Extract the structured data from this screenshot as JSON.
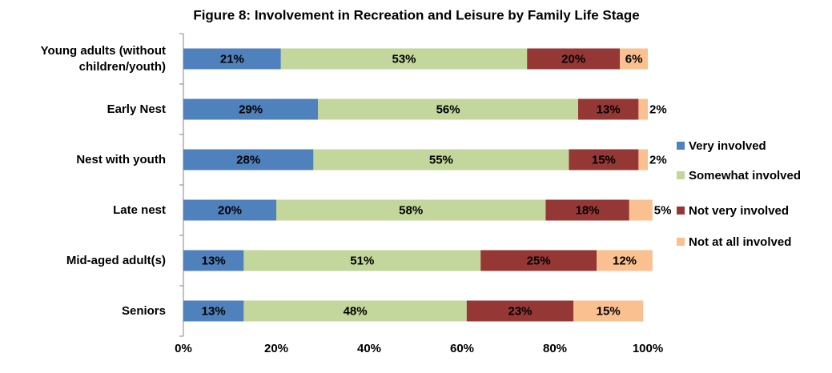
{
  "chart_data": {
    "type": "stacked_bar_horizontal",
    "title": "Figure 8: Involvement in Recreation and Leisure by Family Life Stage",
    "categories": [
      "Young adults (without children/youth)",
      "Early Nest",
      "Nest with youth",
      "Late nest",
      "Mid-aged adult(s)",
      "Seniors"
    ],
    "series": [
      {
        "name": "Very involved",
        "color": "#4f81bd",
        "values": [
          21,
          29,
          28,
          20,
          13,
          13
        ],
        "value_labels": [
          "21%",
          "29%",
          "28%",
          "20%",
          "13%",
          "13%"
        ]
      },
      {
        "name": "Somewhat involved",
        "color": "#c3d69b",
        "values": [
          53,
          56,
          55,
          58,
          51,
          48
        ],
        "value_labels": [
          "53%",
          "56%",
          "55%",
          "58%",
          "51%",
          "48%"
        ]
      },
      {
        "name": "Not very involved",
        "color": "#953735",
        "values": [
          20,
          13,
          15,
          18,
          25,
          23
        ],
        "value_labels": [
          "20%",
          "13%",
          "15%",
          "18%",
          "25%",
          "23%"
        ]
      },
      {
        "name": "Not at all involved",
        "color": "#fac090",
        "values": [
          6,
          2,
          2,
          5,
          12,
          15
        ],
        "value_labels": [
          "6%",
          "2%",
          "2%",
          "5%",
          "12%",
          "15%"
        ]
      }
    ],
    "xlim": [
      0,
      100
    ],
    "xticks": [
      {
        "value": 0,
        "label": "0%"
      },
      {
        "value": 20,
        "label": "20%"
      },
      {
        "value": 40,
        "label": "40%"
      },
      {
        "value": 60,
        "label": "60%"
      },
      {
        "value": 80,
        "label": "80%"
      },
      {
        "value": 100,
        "label": "100%"
      }
    ],
    "legend": "right"
  }
}
